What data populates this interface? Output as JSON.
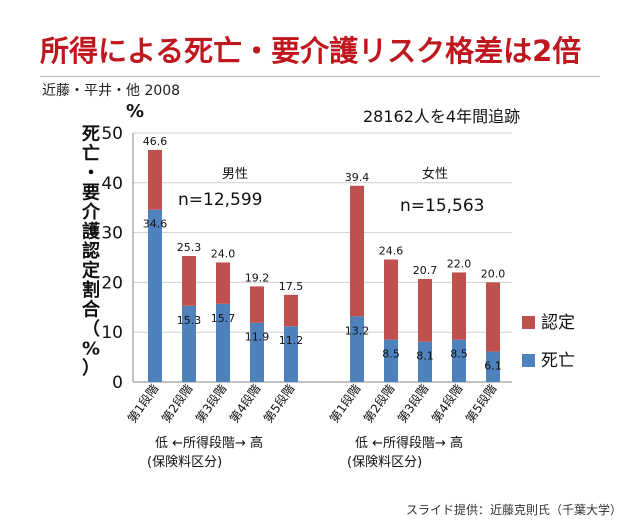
{
  "slide": {
    "title": "所得による死亡・要介護リスク格差は2倍",
    "source": "近藤・平井・他 2008",
    "credit": "スライド提供：近藤克則氏（千葉大学）"
  },
  "chart_data": {
    "type": "bar",
    "stacked": true,
    "unit_label": "%",
    "ylabel": "死亡・要介護認定割合（%）",
    "ylim": [
      0,
      50
    ],
    "yticks": [
      0,
      10,
      20,
      30,
      40,
      50
    ],
    "grid": true,
    "annotation": "28162人を4年間追跡",
    "legend_position": "right",
    "legend": [
      {
        "name": "認定",
        "color": "#c0504d"
      },
      {
        "name": "死亡",
        "color": "#4f81bd"
      }
    ],
    "groups": [
      {
        "name": "男性",
        "n_label": "n=12,599",
        "categories": [
          "第1段階",
          "第2段階",
          "第3段階",
          "第4段階",
          "第5段階"
        ],
        "totals": [
          46.6,
          25.3,
          24.0,
          19.2,
          17.5
        ],
        "death": [
          34.6,
          15.3,
          15.7,
          11.9,
          11.2
        ],
        "axis_note": "低 ←所得段階→ 高",
        "axis_note2": "(保険料区分)"
      },
      {
        "name": "女性",
        "n_label": "n=15,563",
        "categories": [
          "第1段階",
          "第2段階",
          "第3段階",
          "第4段階",
          "第5段階"
        ],
        "totals": [
          39.4,
          24.6,
          20.7,
          22.0,
          20.0
        ],
        "death": [
          13.2,
          8.5,
          8.1,
          8.5,
          6.1
        ],
        "axis_note": "低 ←所得段階→ 高",
        "axis_note2": "(保険料区分)"
      }
    ]
  }
}
